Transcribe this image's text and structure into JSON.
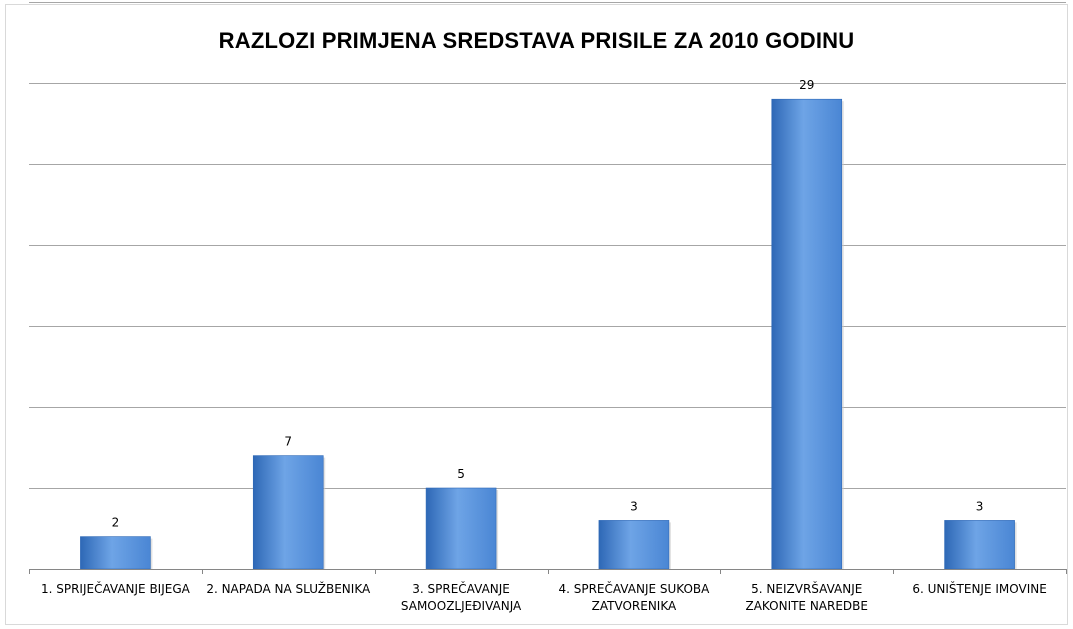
{
  "chart_data": {
    "type": "bar",
    "title": "RAZLOZI PRIMJENA SREDSTAVA PRISILE ZA 2010 GODINU",
    "categories": [
      "1. SPRIJEČAVANJE BIJEGA",
      "2. NAPADA NA SLUŽBENIKA",
      "3. SPREČAVANJE SAMOOZLJEĐIVANJA",
      "4. SPREČAVANJE SUKOBA ZATVORENIKA",
      "5. NEIZVRŠAVANJE ZAKONITE NAREDBE",
      "6. UNIŠTENJE IMOVINE"
    ],
    "category_label_lines": [
      [
        "1. SPRIJEČAVANJE BIJEGA"
      ],
      [
        "2. NAPADA NA SLUŽBENIKA"
      ],
      [
        "3. SPREČAVANJE",
        "SAMOOZLJEĐIVANJA"
      ],
      [
        "4. SPREČAVANJE SUKOBA",
        "ZATVORENIKA"
      ],
      [
        "5. NEIZVRŠAVANJE",
        "ZAKONITE NAREDBE"
      ],
      [
        "6. UNIŠTENJE IMOVINE"
      ]
    ],
    "values": [
      2,
      7,
      5,
      3,
      29,
      3
    ],
    "data_labels": [
      "2",
      "7",
      "5",
      "3",
      "29",
      "3"
    ],
    "ylim": [
      0,
      35
    ],
    "y_gridline_step": 5,
    "y_axis_visible": false,
    "grid": true,
    "legend": "none",
    "bar_color": "#4a86d4",
    "bar_color_light": "#6ea4e6",
    "bar_color_dark": "#2e68b6"
  }
}
